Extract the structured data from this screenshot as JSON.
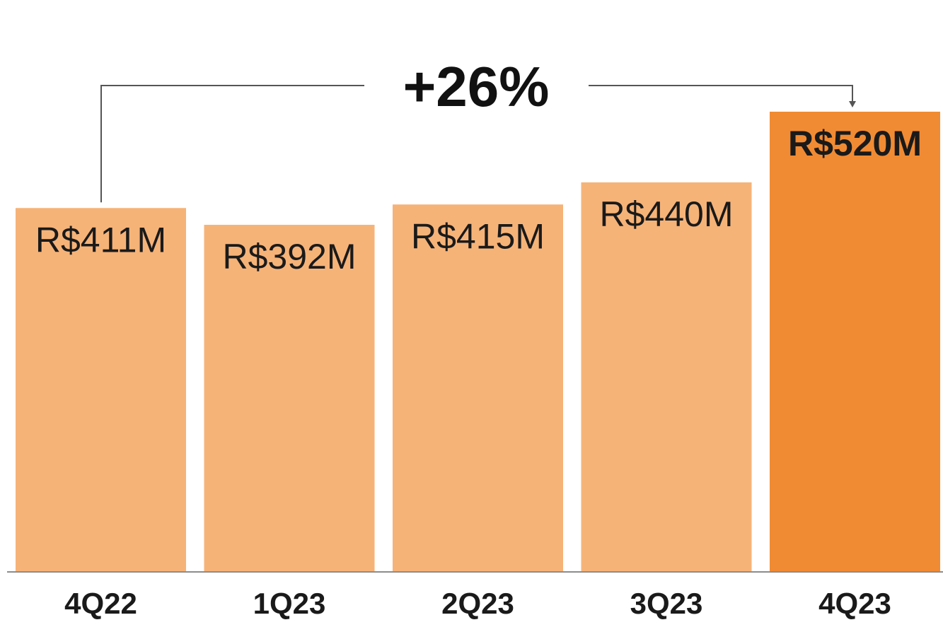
{
  "chart_data": {
    "type": "bar",
    "categories": [
      "4Q22",
      "1Q23",
      "2Q23",
      "3Q23",
      "4Q23"
    ],
    "values": [
      411,
      392,
      415,
      440,
      520
    ],
    "value_labels": [
      "R$411M",
      "R$392M",
      "R$415M",
      "R$440M",
      "R$520M"
    ],
    "highlight_index": 4,
    "annotation": {
      "text": "+26%",
      "from": "4Q22",
      "to": "4Q23"
    },
    "ylim": [
      0,
      520
    ],
    "grid": false,
    "colors": {
      "bar": "#F6B378",
      "highlight": "#F18B33",
      "connector": "#555555",
      "baseline": "#8c8c8c"
    }
  }
}
